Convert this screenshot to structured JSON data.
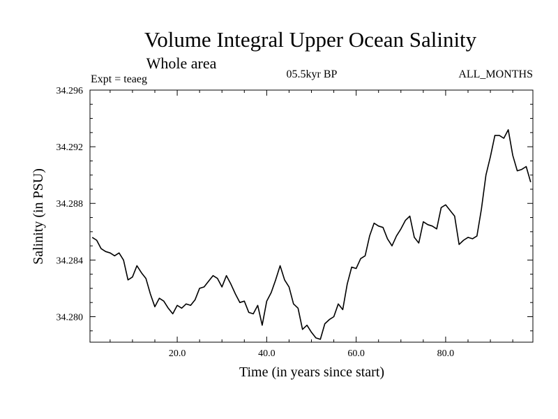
{
  "chart_data": {
    "type": "line",
    "title": "Volume Integral Upper Ocean Salinity",
    "subtitle": "Whole area",
    "experiment_label": "Expt = teaeg",
    "period_label": "05.5kyr BP",
    "months_label": "ALL_MONTHS",
    "xlabel": "Time (in years since start)",
    "ylabel": "Salinity (in PSU)",
    "xlim": [
      0.5,
      99.5
    ],
    "ylim": [
      34.2782,
      34.296
    ],
    "x_ticks": [
      20,
      40,
      60,
      80
    ],
    "x_tick_labels": [
      "20.0",
      "40.0",
      "60.0",
      "80.0"
    ],
    "y_ticks": [
      34.28,
      34.284,
      34.288,
      34.292,
      34.296
    ],
    "y_tick_labels": [
      "34.280",
      "34.284",
      "34.288",
      "34.292",
      "34.296"
    ],
    "grid": false,
    "legend": "none",
    "series": [
      {
        "name": "salinity",
        "color": "#000000",
        "x": [
          1,
          2,
          3,
          4,
          5,
          6,
          7,
          8,
          9,
          10,
          11,
          12,
          13,
          14,
          15,
          16,
          17,
          18,
          19,
          20,
          21,
          22,
          23,
          24,
          25,
          26,
          27,
          28,
          29,
          30,
          31,
          32,
          33,
          34,
          35,
          36,
          37,
          38,
          39,
          40,
          41,
          42,
          43,
          44,
          45,
          46,
          47,
          48,
          49,
          50,
          51,
          52,
          53,
          54,
          55,
          56,
          57,
          58,
          59,
          60,
          61,
          62,
          63,
          64,
          65,
          66,
          67,
          68,
          69,
          70,
          71,
          72,
          73,
          74,
          75,
          76,
          77,
          78,
          79,
          80,
          81,
          82,
          83,
          84,
          85,
          86,
          87,
          88,
          89,
          90,
          91,
          92,
          93,
          94,
          95,
          96,
          97,
          98,
          99
        ],
        "y": [
          34.2856,
          34.2854,
          34.2848,
          34.2846,
          34.2845,
          34.2843,
          34.2845,
          34.284,
          34.2826,
          34.2828,
          34.2836,
          34.2831,
          34.2827,
          34.2816,
          34.2807,
          34.2813,
          34.2811,
          34.2806,
          34.2802,
          34.2808,
          34.2806,
          34.2809,
          34.2808,
          34.2812,
          34.282,
          34.2821,
          34.2825,
          34.2829,
          34.2827,
          34.2821,
          34.2829,
          34.2823,
          34.2816,
          34.281,
          34.2811,
          34.2803,
          34.2802,
          34.2808,
          34.2794,
          34.2811,
          34.2817,
          34.2826,
          34.2836,
          34.2826,
          34.2821,
          34.2809,
          34.2806,
          34.2791,
          34.2794,
          34.2789,
          34.2785,
          34.2784,
          34.2795,
          34.2798,
          34.28,
          34.2809,
          34.2805,
          34.2823,
          34.2835,
          34.2834,
          34.2841,
          34.2843,
          34.2857,
          34.2866,
          34.2864,
          34.2863,
          34.2855,
          34.285,
          34.2857,
          34.2862,
          34.2868,
          34.2871,
          34.2856,
          34.2852,
          34.2867,
          34.2865,
          34.2864,
          34.2862,
          34.2877,
          34.2879,
          34.2875,
          34.2871,
          34.2851,
          34.2854,
          34.2856,
          34.2855,
          34.2857,
          34.2876,
          34.29,
          34.2913,
          34.2928,
          34.2928,
          34.2926,
          34.2932,
          34.2914,
          34.2903,
          34.2904,
          34.2906,
          34.2895
        ]
      }
    ]
  }
}
